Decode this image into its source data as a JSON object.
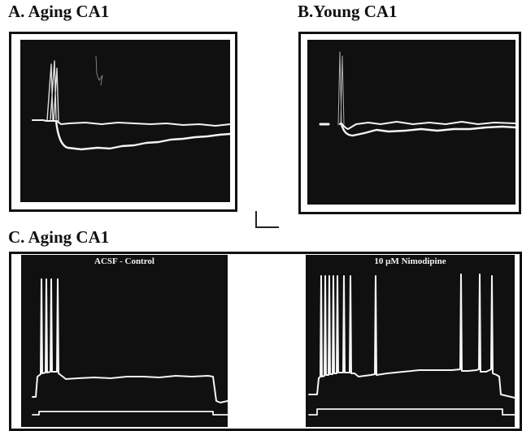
{
  "panels": {
    "a": {
      "label": "A. Aging CA1"
    },
    "b": {
      "label": "B.Young CA1"
    },
    "c": {
      "label": "C. Aging CA1",
      "left_title": "ACSF - Control",
      "right_title": "10 µM Nimodipine"
    }
  },
  "colors": {
    "scope_bg": "#101010",
    "trace": "#f4f4f4",
    "frame": "#111111"
  }
}
